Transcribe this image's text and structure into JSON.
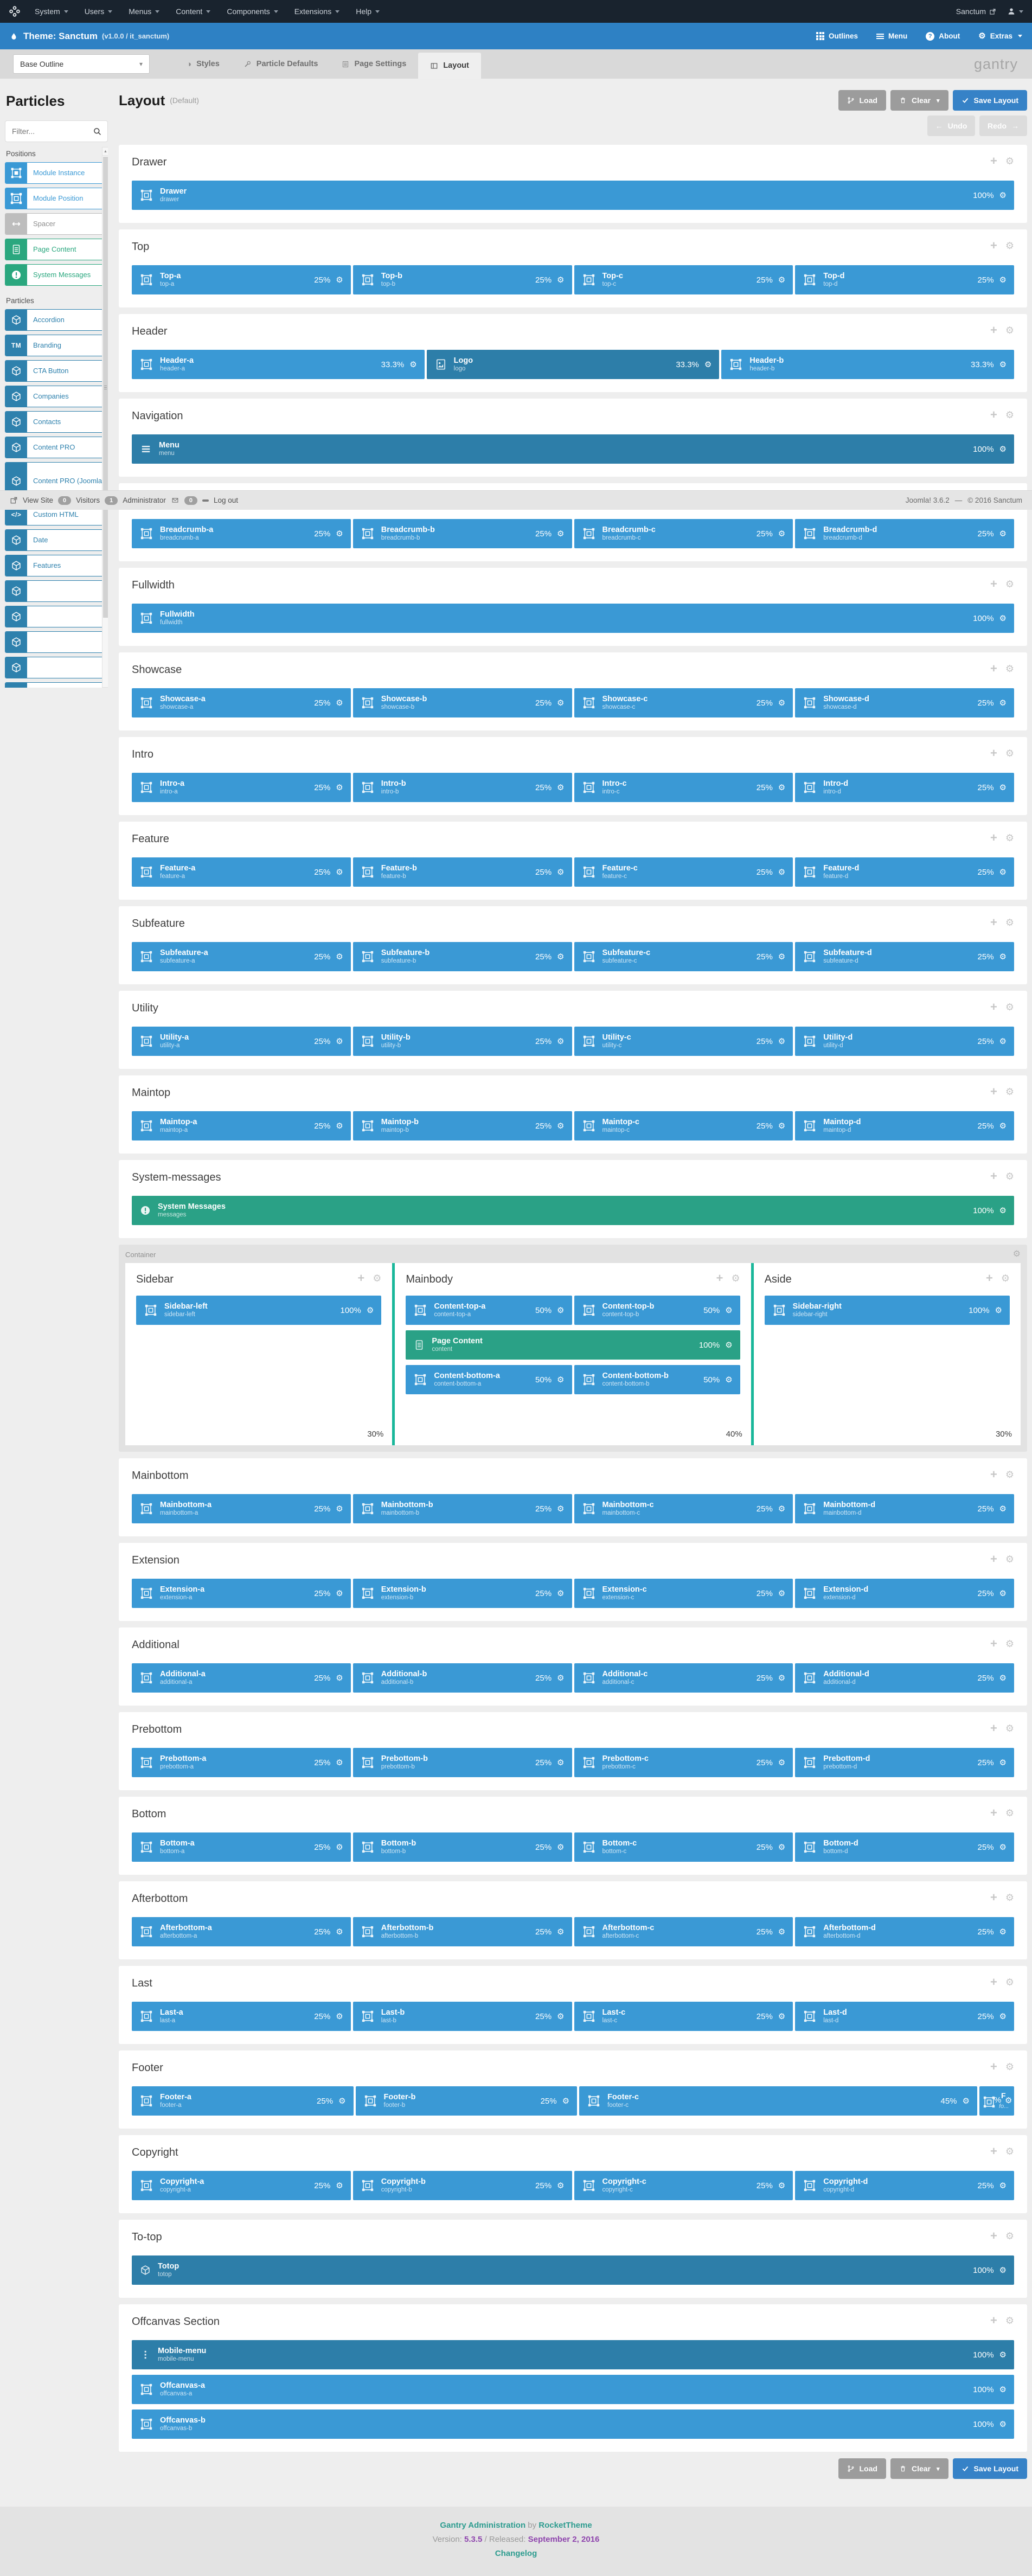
{
  "colors": {
    "position_blue": "#3a99d5",
    "particle_blue": "#2d7ea9",
    "content_green": "#2aa186",
    "divider_teal": "#19b79a",
    "save_blue": "#3682c7",
    "theme_blue": "#2e81c4",
    "admin_dark": "#19232e"
  },
  "admin_bar": {
    "menus": [
      {
        "label": "System"
      },
      {
        "label": "Users"
      },
      {
        "label": "Menus"
      },
      {
        "label": "Content"
      },
      {
        "label": "Components"
      },
      {
        "label": "Extensions"
      },
      {
        "label": "Help"
      }
    ],
    "site": "Sanctum"
  },
  "theme_bar": {
    "title": "Theme: Sanctum",
    "version": "(v1.0.0 / it_sanctum)",
    "actions": [
      {
        "icon": "grid",
        "label": "Outlines"
      },
      {
        "icon": "bars",
        "label": "Menu"
      },
      {
        "icon": "help",
        "label": "About"
      },
      {
        "icon": "gear",
        "label": "Extras",
        "caret": true
      }
    ]
  },
  "outline_bar": {
    "selector_value": "Base Outline",
    "tabs": [
      {
        "icon": "styles",
        "label": "Styles"
      },
      {
        "icon": "wrench",
        "label": "Particle Defaults"
      },
      {
        "icon": "pagesettings",
        "label": "Page Settings"
      },
      {
        "icon": "layouttab",
        "label": "Layout",
        "active": true
      }
    ],
    "brand": "gantry"
  },
  "particles_panel": {
    "title": "Particles",
    "filter_placeholder": "Filter...",
    "groups": [
      {
        "label": "Positions",
        "items": [
          {
            "label": "Module Instance",
            "color": "blue",
            "icon": "modulei"
          },
          {
            "label": "Module Position",
            "color": "blue",
            "icon": "module"
          },
          {
            "label": "Spacer",
            "color": "gray",
            "icon": "spacer"
          },
          {
            "label": "Page Content",
            "color": "green",
            "icon": "doc"
          },
          {
            "label": "System Messages",
            "color": "green",
            "icon": "exclaim"
          }
        ]
      },
      {
        "label": "Particles",
        "items": [
          {
            "label": "Accordion",
            "color": "dblue",
            "icon": "cube"
          },
          {
            "label": "Branding",
            "color": "dblue",
            "icon": "tm"
          },
          {
            "label": "CTA Button",
            "color": "dblue",
            "icon": "cube"
          },
          {
            "label": "Companies",
            "color": "dblue",
            "icon": "cube"
          },
          {
            "label": "Contacts",
            "color": "dblue",
            "icon": "cube"
          },
          {
            "label": "Content PRO",
            "color": "dblue",
            "icon": "cube"
          },
          {
            "label": "Content PRO (Joomla)",
            "color": "dblue",
            "icon": "cube",
            "two": true
          },
          {
            "label": "Custom HTML",
            "color": "dblue",
            "icon": "code"
          },
          {
            "label": "Date",
            "color": "dblue",
            "icon": "cube"
          },
          {
            "label": "Features",
            "color": "dblue",
            "icon": "cube"
          },
          {
            "label": "",
            "color": "dblue",
            "icon": "cube"
          },
          {
            "label": "",
            "color": "dblue",
            "icon": "cube"
          },
          {
            "label": "",
            "color": "dblue",
            "icon": "cube"
          },
          {
            "label": "",
            "color": "dblue",
            "icon": "cube"
          },
          {
            "label": "",
            "color": "dblue",
            "icon": "cube"
          }
        ]
      }
    ]
  },
  "admin_strip": {
    "view_site": "View Site",
    "visitors_count": "0",
    "visitors_label": "Visitors",
    "admin_count": "1",
    "admin_label": "Administrator",
    "messages_count": "0",
    "logout": "Log out",
    "version": "Joomla! 3.6.2",
    "separator": "—",
    "copyright": "© 2016 Sanctum"
  },
  "layout_header": {
    "title": "Layout",
    "subtitle": "(Default)",
    "load": "Load",
    "clear": "Clear",
    "save": "Save Layout",
    "undo": "Undo",
    "redo": "Redo",
    "undo_arrow": "←",
    "redo_arrow": "→"
  },
  "sections": [
    {
      "name": "Drawer",
      "rows": [
        [
          {
            "t": "Drawer",
            "s": "drawer",
            "p": "100%"
          }
        ]
      ]
    },
    {
      "name": "Top",
      "rows": [
        [
          {
            "t": "Top-a",
            "s": "top-a",
            "p": "25%"
          },
          {
            "t": "Top-b",
            "s": "top-b",
            "p": "25%"
          },
          {
            "t": "Top-c",
            "s": "top-c",
            "p": "25%"
          },
          {
            "t": "Top-d",
            "s": "top-d",
            "p": "25%"
          }
        ]
      ]
    },
    {
      "name": "Header",
      "rows": [
        [
          {
            "t": "Header-a",
            "s": "header-a",
            "p": "33.3%"
          },
          {
            "t": "Logo",
            "s": "logo",
            "p": "33.3%",
            "k": "part",
            "i": "image"
          },
          {
            "t": "Header-b",
            "s": "header-b",
            "p": "33.3%"
          }
        ]
      ]
    },
    {
      "name": "Navigation",
      "rows": [
        [
          {
            "t": "Menu",
            "s": "menu",
            "p": "100%",
            "k": "part",
            "i": "menu"
          }
        ]
      ]
    },
    {
      "name": "",
      "rows": [
        [
          {
            "t": "Breadcrumb-a",
            "s": "breadcrumb-a",
            "p": "25%"
          },
          {
            "t": "Breadcrumb-b",
            "s": "breadcrumb-b",
            "p": "25%"
          },
          {
            "t": "Breadcrumb-c",
            "s": "breadcrumb-c",
            "p": "25%"
          },
          {
            "t": "Breadcrumb-d",
            "s": "breadcrumb-d",
            "p": "25%"
          }
        ]
      ]
    },
    {
      "name": "Fullwidth",
      "rows": [
        [
          {
            "t": "Fullwidth",
            "s": "fullwidth",
            "p": "100%"
          }
        ]
      ]
    },
    {
      "name": "Showcase",
      "rows": [
        [
          {
            "t": "Showcase-a",
            "s": "showcase-a",
            "p": "25%"
          },
          {
            "t": "Showcase-b",
            "s": "showcase-b",
            "p": "25%"
          },
          {
            "t": "Showcase-c",
            "s": "showcase-c",
            "p": "25%"
          },
          {
            "t": "Showcase-d",
            "s": "showcase-d",
            "p": "25%"
          }
        ]
      ]
    },
    {
      "name": "Intro",
      "rows": [
        [
          {
            "t": "Intro-a",
            "s": "intro-a",
            "p": "25%"
          },
          {
            "t": "Intro-b",
            "s": "intro-b",
            "p": "25%"
          },
          {
            "t": "Intro-c",
            "s": "intro-c",
            "p": "25%"
          },
          {
            "t": "Intro-d",
            "s": "intro-d",
            "p": "25%"
          }
        ]
      ]
    },
    {
      "name": "Feature",
      "rows": [
        [
          {
            "t": "Feature-a",
            "s": "feature-a",
            "p": "25%"
          },
          {
            "t": "Feature-b",
            "s": "feature-b",
            "p": "25%"
          },
          {
            "t": "Feature-c",
            "s": "feature-c",
            "p": "25%"
          },
          {
            "t": "Feature-d",
            "s": "feature-d",
            "p": "25%"
          }
        ]
      ]
    },
    {
      "name": "Subfeature",
      "rows": [
        [
          {
            "t": "Subfeature-a",
            "s": "subfeature-a",
            "p": "25%"
          },
          {
            "t": "Subfeature-b",
            "s": "subfeature-b",
            "p": "25%"
          },
          {
            "t": "Subfeature-c",
            "s": "subfeature-c",
            "p": "25%"
          },
          {
            "t": "Subfeature-d",
            "s": "subfeature-d",
            "p": "25%"
          }
        ]
      ]
    },
    {
      "name": "Utility",
      "rows": [
        [
          {
            "t": "Utility-a",
            "s": "utility-a",
            "p": "25%"
          },
          {
            "t": "Utility-b",
            "s": "utility-b",
            "p": "25%"
          },
          {
            "t": "Utility-c",
            "s": "utility-c",
            "p": "25%"
          },
          {
            "t": "Utility-d",
            "s": "utility-d",
            "p": "25%"
          }
        ]
      ]
    },
    {
      "name": "Maintop",
      "rows": [
        [
          {
            "t": "Maintop-a",
            "s": "maintop-a",
            "p": "25%"
          },
          {
            "t": "Maintop-b",
            "s": "maintop-b",
            "p": "25%"
          },
          {
            "t": "Maintop-c",
            "s": "maintop-c",
            "p": "25%"
          },
          {
            "t": "Maintop-d",
            "s": "maintop-d",
            "p": "25%"
          }
        ]
      ]
    },
    {
      "name": "System-messages",
      "rows": [
        [
          {
            "t": "System Messages",
            "s": "messages",
            "p": "100%",
            "k": "green",
            "i": "exclaim"
          }
        ]
      ]
    },
    {
      "name": "Container",
      "container": true,
      "columns": [
        {
          "title": "Sidebar",
          "size": "30%",
          "basis": "30%",
          "rows": [
            [
              {
                "t": "Sidebar-left",
                "s": "sidebar-left",
                "p": "100%"
              }
            ]
          ]
        },
        {
          "title": "Mainbody",
          "size": "40%",
          "basis": "40%",
          "rows": [
            [
              {
                "t": "Content-top-a",
                "s": "content-top-a",
                "p": "50%"
              },
              {
                "t": "Content-top-b",
                "s": "content-top-b",
                "p": "50%"
              }
            ],
            [
              {
                "t": "Page Content",
                "s": "content",
                "p": "100%",
                "k": "green",
                "i": "doc"
              }
            ],
            [
              {
                "t": "Content-bottom-a",
                "s": "content-bottom-a",
                "p": "50%"
              },
              {
                "t": "Content-bottom-b",
                "s": "content-bottom-b",
                "p": "50%"
              }
            ]
          ]
        },
        {
          "title": "Aside",
          "size": "30%",
          "basis": "30%",
          "rows": [
            [
              {
                "t": "Sidebar-right",
                "s": "sidebar-right",
                "p": "100%"
              }
            ]
          ]
        }
      ]
    },
    {
      "name": "Mainbottom",
      "rows": [
        [
          {
            "t": "Mainbottom-a",
            "s": "mainbottom-a",
            "p": "25%"
          },
          {
            "t": "Mainbottom-b",
            "s": "mainbottom-b",
            "p": "25%"
          },
          {
            "t": "Mainbottom-c",
            "s": "mainbottom-c",
            "p": "25%"
          },
          {
            "t": "Mainbottom-d",
            "s": "mainbottom-d",
            "p": "25%"
          }
        ]
      ]
    },
    {
      "name": "Extension",
      "rows": [
        [
          {
            "t": "Extension-a",
            "s": "extension-a",
            "p": "25%"
          },
          {
            "t": "Extension-b",
            "s": "extension-b",
            "p": "25%"
          },
          {
            "t": "Extension-c",
            "s": "extension-c",
            "p": "25%"
          },
          {
            "t": "Extension-d",
            "s": "extension-d",
            "p": "25%"
          }
        ]
      ]
    },
    {
      "name": "Additional",
      "rows": [
        [
          {
            "t": "Additional-a",
            "s": "additional-a",
            "p": "25%"
          },
          {
            "t": "Additional-b",
            "s": "additional-b",
            "p": "25%"
          },
          {
            "t": "Additional-c",
            "s": "additional-c",
            "p": "25%"
          },
          {
            "t": "Additional-d",
            "s": "additional-d",
            "p": "25%"
          }
        ]
      ]
    },
    {
      "name": "Prebottom",
      "rows": [
        [
          {
            "t": "Prebottom-a",
            "s": "prebottom-a",
            "p": "25%"
          },
          {
            "t": "Prebottom-b",
            "s": "prebottom-b",
            "p": "25%"
          },
          {
            "t": "Prebottom-c",
            "s": "prebottom-c",
            "p": "25%"
          },
          {
            "t": "Prebottom-d",
            "s": "prebottom-d",
            "p": "25%"
          }
        ]
      ]
    },
    {
      "name": "Bottom",
      "rows": [
        [
          {
            "t": "Bottom-a",
            "s": "bottom-a",
            "p": "25%"
          },
          {
            "t": "Bottom-b",
            "s": "bottom-b",
            "p": "25%"
          },
          {
            "t": "Bottom-c",
            "s": "bottom-c",
            "p": "25%"
          },
          {
            "t": "Bottom-d",
            "s": "bottom-d",
            "p": "25%"
          }
        ]
      ]
    },
    {
      "name": "Afterbottom",
      "rows": [
        [
          {
            "t": "Afterbottom-a",
            "s": "afterbottom-a",
            "p": "25%"
          },
          {
            "t": "Afterbottom-b",
            "s": "afterbottom-b",
            "p": "25%"
          },
          {
            "t": "Afterbottom-c",
            "s": "afterbottom-c",
            "p": "25%"
          },
          {
            "t": "Afterbottom-d",
            "s": "afterbottom-d",
            "p": "25%"
          }
        ]
      ]
    },
    {
      "name": "Last",
      "rows": [
        [
          {
            "t": "Last-a",
            "s": "last-a",
            "p": "25%"
          },
          {
            "t": "Last-b",
            "s": "last-b",
            "p": "25%"
          },
          {
            "t": "Last-c",
            "s": "last-c",
            "p": "25%"
          },
          {
            "t": "Last-d",
            "s": "last-d",
            "p": "25%"
          }
        ]
      ]
    },
    {
      "name": "Footer",
      "rows": [
        [
          {
            "t": "Footer-a",
            "s": "footer-a",
            "p": "25%"
          },
          {
            "t": "Footer-b",
            "s": "footer-b",
            "p": "25%"
          },
          {
            "t": "Footer-c",
            "s": "footer-c",
            "p": "45%"
          },
          {
            "t": "F",
            "s": "fo...",
            "p": "%",
            "narrow": true
          }
        ]
      ]
    },
    {
      "name": "Copyright",
      "rows": [
        [
          {
            "t": "Copyright-a",
            "s": "copyright-a",
            "p": "25%"
          },
          {
            "t": "Copyright-b",
            "s": "copyright-b",
            "p": "25%"
          },
          {
            "t": "Copyright-c",
            "s": "copyright-c",
            "p": "25%"
          },
          {
            "t": "Copyright-d",
            "s": "copyright-d",
            "p": "25%"
          }
        ]
      ]
    },
    {
      "name": "To-top",
      "rows": [
        [
          {
            "t": "Totop",
            "s": "totop",
            "p": "100%",
            "k": "part",
            "i": "cube"
          }
        ]
      ]
    },
    {
      "name": "Offcanvas Section",
      "rows": [
        [
          {
            "t": "Mobile-menu",
            "s": "mobile-menu",
            "p": "100%",
            "k": "part",
            "i": "dots"
          }
        ],
        [
          {
            "t": "Offcanvas-a",
            "s": "offcanvas-a",
            "p": "100%"
          }
        ],
        [
          {
            "t": "Offcanvas-b",
            "s": "offcanvas-b",
            "p": "100%"
          }
        ]
      ]
    }
  ],
  "page_footer": {
    "app": "Gantry Administration",
    "by": "by",
    "vendor": "RocketTheme",
    "version_label": "Version:",
    "version": "5.3.5",
    "slash": "/",
    "released_label": "Released:",
    "released": "September 2, 2016",
    "changelog": "Changelog"
  }
}
